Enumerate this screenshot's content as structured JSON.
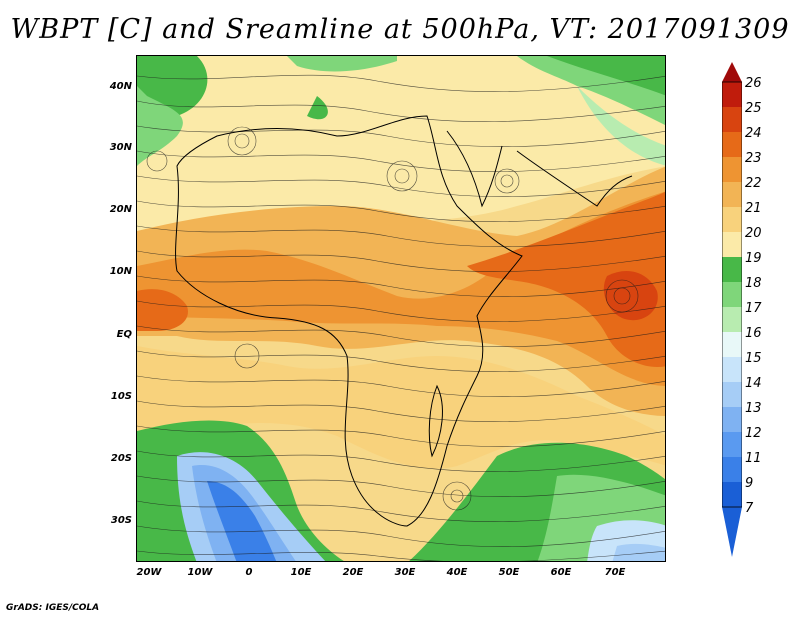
{
  "title": "WBPT [C] and Sreamline at 500hPa, VT: 2017091309",
  "map": {
    "lat_labels": [
      "40N",
      "30N",
      "20N",
      "10N",
      "EQ",
      "10S",
      "20S",
      "30S"
    ],
    "lon_labels": [
      "20W",
      "10W",
      "0",
      "10E",
      "20E",
      "30E",
      "40E",
      "50E",
      "60E",
      "70E"
    ]
  },
  "colorbar": {
    "labels": [
      "26",
      "25",
      "24",
      "23",
      "22",
      "21",
      "20",
      "19",
      "18",
      "17",
      "16",
      "15",
      "14",
      "13",
      "12",
      "11",
      "9",
      "7"
    ],
    "colors": {
      "c7": "#1a5fd6",
      "c9": "#3a80e8",
      "c11": "#5a9af0",
      "c12": "#7fb2f2",
      "c13": "#a6cdf6",
      "c14": "#c8e4fa",
      "c15": "#e8f8f8",
      "c16": "#b8ecb0",
      "c17": "#7fd67a",
      "c18": "#48b848",
      "c19": "#fbeaa8",
      "c20": "#f8d27c",
      "c21": "#f2b455",
      "c22": "#ee9432",
      "c23": "#e66a18",
      "c24": "#d84410",
      "c25": "#c01c0c",
      "c26": "#a00a0a"
    }
  },
  "credit": "GrADS: IGES/COLA"
}
